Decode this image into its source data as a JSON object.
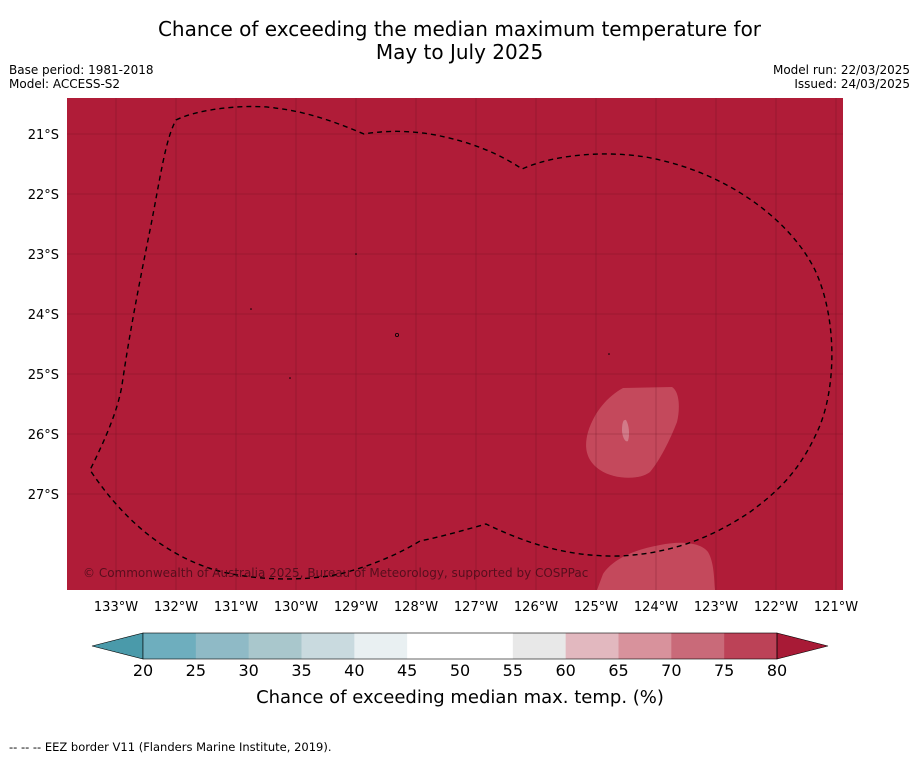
{
  "title": {
    "line1": "Chance of exceeding the median maximum temperature for",
    "line2": "May to July 2025"
  },
  "meta": {
    "base_period": "Base period: 1981-2018",
    "model": "Model: ACCESS-S2",
    "model_run": "Model run: 22/03/2025",
    "issued": "Issued: 24/03/2025"
  },
  "map": {
    "fill_color": "#b01c38",
    "copyright": "© Commonwealth of Australia 2025, Bureau of Meteorology, supported by COSPPac",
    "lat_labels": [
      "21°S",
      "22°S",
      "23°S",
      "24°S",
      "25°S",
      "26°S",
      "27°S"
    ],
    "lon_labels": [
      "133°W",
      "132°W",
      "131°W",
      "130°W",
      "129°W",
      "128°W",
      "127°W",
      "126°W",
      "125°W",
      "124°W",
      "123°W",
      "122°W",
      "121°W"
    ]
  },
  "colorbar": {
    "label": "Chance of exceeding median max. temp. (%)",
    "ticks": [
      "20",
      "25",
      "30",
      "35",
      "40",
      "45",
      "50",
      "55",
      "60",
      "65",
      "70",
      "75",
      "80"
    ],
    "colors": [
      "#6eaebe",
      "#8fbac6",
      "#a9c7cc",
      "#c9dadf",
      "#e9f0f2",
      "#ffffff",
      "#ffffff",
      "#e8e8e8",
      "#e2b8bf",
      "#d8929c",
      "#c96a79",
      "#bc4257"
    ],
    "under_color": "#4a9aaa",
    "over_color": "#a81a36"
  },
  "footer": {
    "legend_text": "--  --  -- EEZ border V11 (Flanders Marine Institute, 2019)."
  }
}
